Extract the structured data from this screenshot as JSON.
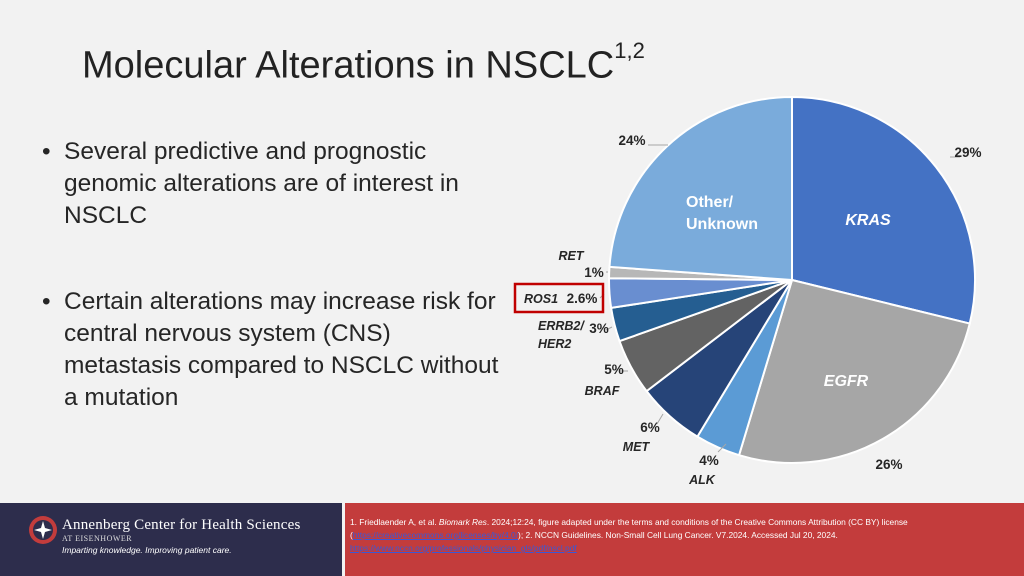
{
  "slide": {
    "title": "Molecular Alterations in NSCLC",
    "title_superscript": "1,2",
    "bullets": [
      "Several predictive and prognostic genomic alterations are of interest in NSCLC",
      "Certain alterations may increase risk for central nervous system (CNS) metastasis compared to NSCLC without a mutation"
    ]
  },
  "chart_data": {
    "type": "pie",
    "slices": [
      {
        "label": "KRAS",
        "value": 29,
        "value_label": "29%",
        "color": "#4472c4"
      },
      {
        "label": "EGFR",
        "value": 26,
        "value_label": "26%",
        "color": "#a6a6a6"
      },
      {
        "label": "ALK",
        "value": 4,
        "value_label": "4%",
        "color": "#5b9bd5"
      },
      {
        "label": "MET",
        "value": 6,
        "value_label": "6%",
        "color": "#264478"
      },
      {
        "label": "BRAF",
        "value": 5,
        "value_label": "5%",
        "color": "#636363"
      },
      {
        "label": "ERRB2/ HER2",
        "value": 3,
        "value_label": "3%",
        "color": "#255e91"
      },
      {
        "label": "ROS1",
        "value": 2.6,
        "value_label": "2.6%",
        "color": "#698ed0"
      },
      {
        "label": "RET",
        "value": 1,
        "value_label": "1%",
        "color": "#b7b7b7"
      },
      {
        "label": "Other/ Unknown",
        "value": 24,
        "value_label": "24%",
        "color": "#7aabdb"
      }
    ],
    "start_angle_deg": 0,
    "direction": "clockwise",
    "highlighted": "ROS1",
    "highlight_color": "#c00000"
  },
  "footer": {
    "org_name": "Annenberg Center for Health Sciences",
    "org_sub": "AT EISENHOWER",
    "tagline": "Imparting knowledge. Improving patient care.",
    "references": {
      "ref1_pre": "1. Friedlaender A, et al. ",
      "ref1_journal": "Biomark Res",
      "ref1_post": ". 2024;12:24, figure adapted under the terms and conditions of the Creative Commons Attribution (CC BY) license (",
      "ref1_link": "https://creativecommons.org/licenses/by/4.0/",
      "ref2": "); 2. NCCN Guidelines. Non-Small Cell Lung Cancer. V7.2024. Accessed Jul 20, 2024.",
      "ref2_link": "https://www.nccn.org/professionals/physician_gls/pdf/nscl.pdf"
    },
    "colors": {
      "left": "#2d2d4c",
      "right": "#c33c3c"
    }
  }
}
